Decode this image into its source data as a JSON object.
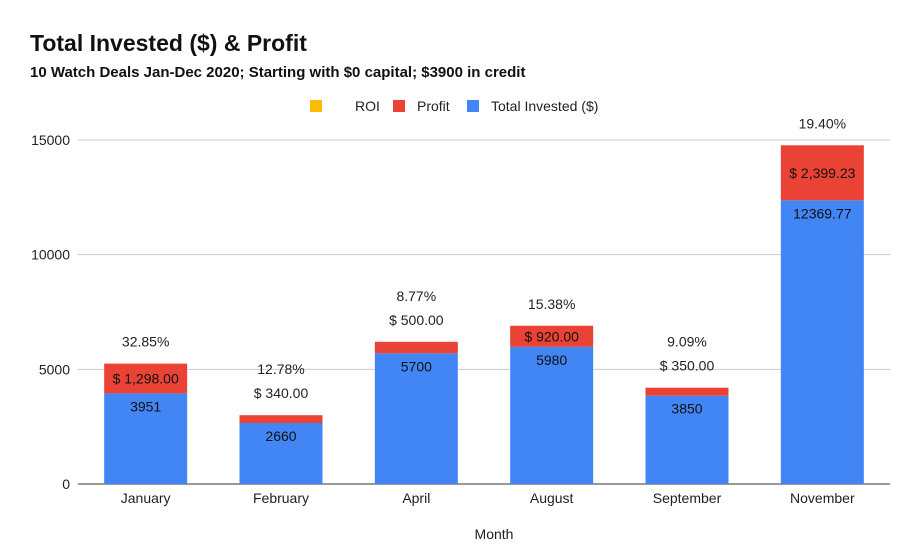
{
  "chart_data": {
    "type": "bar",
    "stacked": true,
    "title": "Total Invested ($) & Profit",
    "subtitle": "10 Watch Deals Jan-Dec 2020; Starting with $0 capital; $3900 in credit",
    "xlabel": "Month",
    "ylabel": "",
    "ylim": [
      0,
      15000
    ],
    "yticks": [
      "0",
      "5000",
      "10000",
      "15000"
    ],
    "grid": true,
    "legend_position": "top",
    "categories": [
      "January",
      "February",
      "April",
      "August",
      "September",
      "November"
    ],
    "series": [
      {
        "name": "ROI",
        "color": "#fbbc04",
        "values": [
          32.85,
          12.78,
          8.77,
          15.38,
          9.09,
          19.4
        ],
        "labels": [
          "32.85%",
          "12.78%",
          "8.77%",
          "15.38%",
          "9.09%",
          "19.40%"
        ]
      },
      {
        "name": "Profit",
        "color": "#ea4335",
        "values": [
          1298.0,
          340.0,
          500.0,
          920.0,
          350.0,
          2399.23
        ],
        "labels": [
          "$ 1,298.00",
          "$ 340.00",
          "$ 500.00",
          "$ 920.00",
          "$ 350.00",
          "$ 2,399.23"
        ]
      },
      {
        "name": "Total Invested ($)",
        "color": "#4285f4",
        "values": [
          3951,
          2660,
          5700,
          5980,
          3850,
          12369.77
        ],
        "labels": [
          "3951",
          "2660",
          "5700",
          "5980",
          "3850",
          "12369.77"
        ]
      }
    ]
  }
}
